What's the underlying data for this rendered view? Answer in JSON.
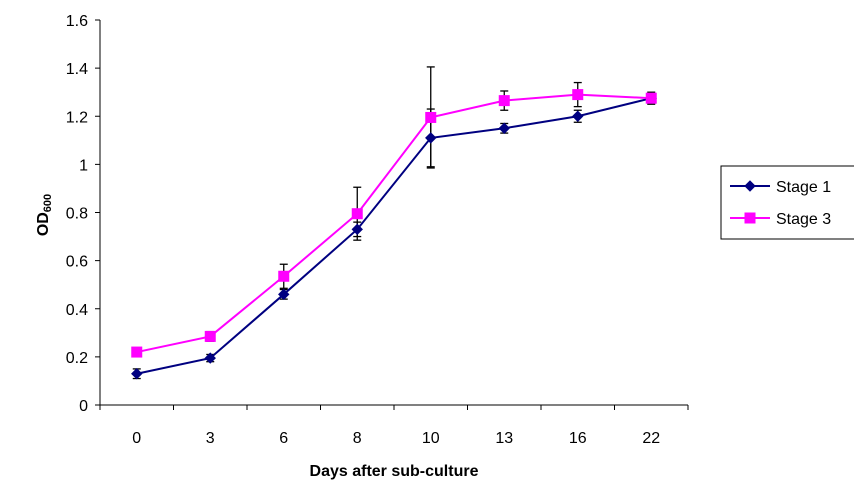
{
  "chart_data": {
    "type": "line",
    "categories": [
      "0",
      "3",
      "6",
      "8",
      "10",
      "13",
      "16",
      "22"
    ],
    "series": [
      {
        "name": "Stage 1",
        "color": "#000080",
        "marker": "diamond",
        "values": [
          0.13,
          0.195,
          0.46,
          0.73,
          1.11,
          1.15,
          1.2,
          1.275
        ],
        "errors": [
          0.02,
          0.015,
          0.02,
          0.03,
          0.12,
          0.02,
          0.025,
          0.02
        ]
      },
      {
        "name": "Stage 3",
        "color": "#ff00ff",
        "marker": "square",
        "values": [
          0.22,
          0.285,
          0.535,
          0.795,
          1.195,
          1.265,
          1.29,
          1.275
        ],
        "errors": [
          0.005,
          0.02,
          0.05,
          0.11,
          0.21,
          0.04,
          0.05,
          0.025
        ]
      }
    ],
    "xlabel": "Days after sub-culture",
    "ylabel": "OD",
    "ylabel_subscript": "600",
    "ylim": [
      0,
      1.6
    ],
    "yticks": [
      "0",
      "0.2",
      "0.4",
      "0.6",
      "0.8",
      "1",
      "1.2",
      "1.4",
      "1.6"
    ],
    "grid": false,
    "legend_position": "right"
  }
}
